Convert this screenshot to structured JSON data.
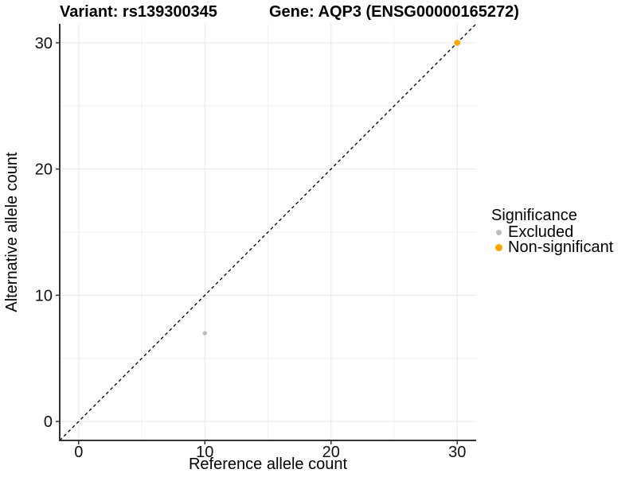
{
  "titles": {
    "variant": "Variant: rs139300345",
    "gene": "Gene: AQP3 (ENSG00000165272)"
  },
  "chart_data": {
    "type": "scatter",
    "xlabel": "Reference allele count",
    "ylabel": "Alternative allele count",
    "xlim": [
      -1.5,
      31.5
    ],
    "ylim": [
      -1.5,
      31.5
    ],
    "x_ticks": [
      0,
      10,
      20,
      30
    ],
    "y_ticks": [
      0,
      10,
      20,
      30
    ],
    "x_minor_gridlines": [
      5,
      15,
      25
    ],
    "y_minor_gridlines": [
      5,
      15,
      25
    ],
    "grid": "on",
    "identity_line": {
      "style": "dashed",
      "color": "#000000",
      "from": -1.5,
      "to": 31.5
    },
    "series": [
      {
        "name": "Excluded",
        "color": "#bdbdbd",
        "radius": 2.7,
        "points": [
          {
            "x": 10,
            "y": 7
          }
        ]
      },
      {
        "name": "Non-significant",
        "color": "#ffa500",
        "radius": 3.8,
        "points": [
          {
            "x": 30,
            "y": 30
          }
        ]
      }
    ],
    "legend": {
      "title": "Significance",
      "position": "right"
    }
  },
  "colors": {
    "grid_major": "#e7e7e7",
    "grid_minor": "#f2f2f2",
    "axis": "#333333",
    "tick_text": "#111111"
  }
}
